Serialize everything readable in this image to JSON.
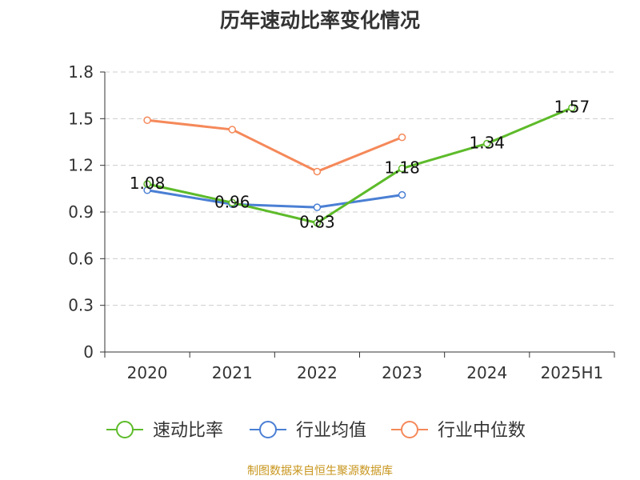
{
  "chart_data": {
    "type": "line",
    "title": "历年速动比率变化情况",
    "categories": [
      "2020",
      "2021",
      "2022",
      "2023",
      "2024",
      "2025H1"
    ],
    "yticks": [
      "0",
      "0.3",
      "0.6",
      "0.9",
      "1.2",
      "1.5",
      "1.8"
    ],
    "ylim": [
      0,
      1.8
    ],
    "grid": true,
    "legend_position": "bottom",
    "series": [
      {
        "name": "速动比率",
        "color": "#5dbb2a",
        "values": [
          1.08,
          0.96,
          0.83,
          1.18,
          1.34,
          1.57
        ],
        "labels": [
          "1.08",
          "0.96",
          "0.83",
          "1.18",
          "1.34",
          "1.57"
        ]
      },
      {
        "name": "行业均值",
        "color": "#4a7fd4",
        "values": [
          1.04,
          0.95,
          0.93,
          1.01,
          null,
          null
        ]
      },
      {
        "name": "行业中位数",
        "color": "#f5895a",
        "values": [
          1.49,
          1.43,
          1.16,
          1.38,
          null,
          null
        ]
      }
    ]
  },
  "footer": {
    "source": "制图数据来自恒生聚源数据库"
  }
}
